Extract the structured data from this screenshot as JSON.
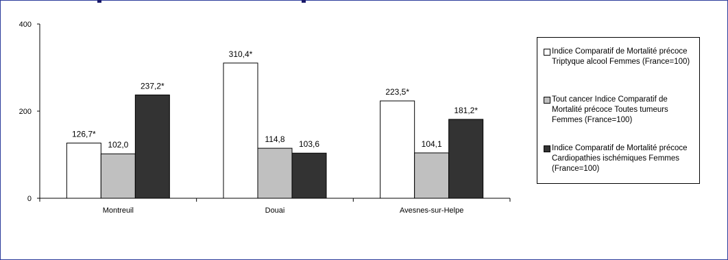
{
  "chart_data": {
    "type": "bar",
    "title": "",
    "xlabel": "",
    "ylabel": "",
    "ylim": [
      0,
      400
    ],
    "yticks": [
      0,
      200,
      400
    ],
    "grid": false,
    "legend_position": "right",
    "categories": [
      "Montreuil",
      "Douai",
      "Avesnes-sur-Helpe"
    ],
    "series": [
      {
        "name": "Indice Comparatif de Mortalité précoce Triptyque alcool Femmes (France=100)",
        "color": "#ffffff",
        "values": [
          126.7,
          310.4,
          223.5
        ],
        "labels": [
          "126,7*",
          "310,4*",
          "223,5*"
        ]
      },
      {
        "name": "Tout cancer Indice Comparatif de Mortalité précoce Toutes tumeurs Femmes (France=100)",
        "color": "#c0c0c0",
        "values": [
          102.0,
          114.8,
          104.1
        ],
        "labels": [
          "102,0",
          "114,8",
          "104,1"
        ]
      },
      {
        "name": "Indice Comparatif de Mortalité précoce Cardiopathies ischémiques Femmes (France=100)",
        "color": "#333333",
        "values": [
          237.2,
          103.6,
          181.2
        ],
        "labels": [
          "237,2*",
          "103,6",
          "181,2*"
        ]
      }
    ]
  },
  "legend": {
    "items": [
      "Indice Comparatif de Mortalité précoce Triptyque alcool Femmes (France=100)",
      "Tout cancer Indice Comparatif de Mortalité précoce Toutes tumeurs Femmes (France=100)",
      "Indice Comparatif de Mortalité précoce Cardiopathies ischémiques Femmes (France=100)"
    ]
  }
}
